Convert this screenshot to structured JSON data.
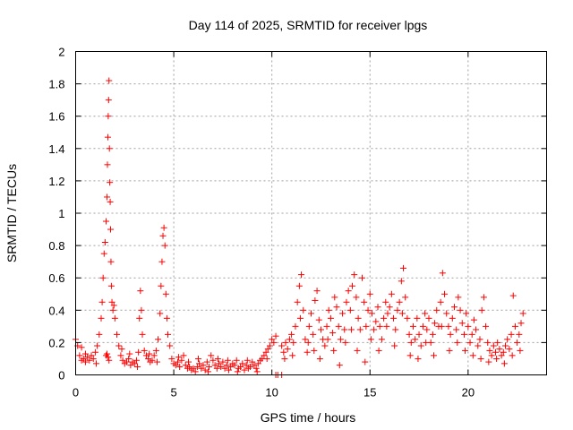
{
  "chart_data": {
    "type": "scatter",
    "title": "Day 114 of 2025, SRMTID for receiver lpgs",
    "xlabel": "GPS time / hours",
    "ylabel": "SRMTID / TECUs",
    "xlim": [
      0,
      24
    ],
    "ylim": [
      0,
      2
    ],
    "xticks": [
      0,
      5,
      10,
      15,
      20
    ],
    "yticks": [
      0,
      0.2,
      0.4,
      0.6,
      0.8,
      1,
      1.2,
      1.4,
      1.6,
      1.8,
      2
    ],
    "ytick_labels": [
      "0",
      "0.2",
      "0.4",
      "0.6",
      "0.8",
      "1",
      "1.2",
      "1.4",
      "1.6",
      "1.8",
      "2"
    ],
    "grid": true,
    "marker": "+",
    "color": "#ff0000",
    "series": [
      {
        "name": "lpgs",
        "points": [
          [
            0.0,
            0.22
          ],
          [
            0.1,
            0.18
          ],
          [
            0.2,
            0.12
          ],
          [
            0.3,
            0.09
          ],
          [
            0.4,
            0.1
          ],
          [
            0.5,
            0.08
          ],
          [
            0.6,
            0.11
          ],
          [
            0.7,
            0.09
          ],
          [
            0.8,
            0.12
          ],
          [
            0.9,
            0.1
          ],
          [
            1.0,
            0.14
          ],
          [
            1.1,
            0.18
          ],
          [
            1.2,
            0.25
          ],
          [
            1.3,
            0.35
          ],
          [
            1.35,
            0.45
          ],
          [
            1.4,
            0.6
          ],
          [
            1.45,
            0.75
          ],
          [
            1.5,
            0.82
          ],
          [
            1.55,
            0.95
          ],
          [
            1.6,
            1.1
          ],
          [
            1.62,
            1.3
          ],
          [
            1.64,
            1.47
          ],
          [
            1.66,
            1.6
          ],
          [
            1.68,
            1.7
          ],
          [
            1.7,
            1.82
          ],
          [
            1.72,
            1.4
          ],
          [
            1.74,
            1.19
          ],
          [
            1.76,
            1.07
          ],
          [
            1.78,
            0.9
          ],
          [
            1.8,
            0.7
          ],
          [
            1.82,
            0.55
          ],
          [
            1.85,
            0.45
          ],
          [
            1.9,
            0.4
          ],
          [
            1.95,
            0.43
          ],
          [
            2.0,
            0.35
          ],
          [
            1.6,
            0.13
          ],
          [
            1.7,
            0.09
          ],
          [
            1.65,
            0.11
          ],
          [
            1.55,
            0.12
          ],
          [
            2.1,
            0.25
          ],
          [
            2.2,
            0.18
          ],
          [
            2.3,
            0.12
          ],
          [
            2.4,
            0.09
          ],
          [
            2.5,
            0.07
          ],
          [
            2.6,
            0.08
          ],
          [
            2.7,
            0.1
          ],
          [
            2.8,
            0.06
          ],
          [
            2.9,
            0.08
          ],
          [
            3.0,
            0.07
          ],
          [
            3.1,
            0.09
          ],
          [
            3.2,
            0.14
          ],
          [
            3.25,
            0.35
          ],
          [
            3.3,
            0.52
          ],
          [
            3.35,
            0.4
          ],
          [
            3.4,
            0.25
          ],
          [
            3.5,
            0.15
          ],
          [
            3.6,
            0.12
          ],
          [
            3.7,
            0.1
          ],
          [
            3.8,
            0.08
          ],
          [
            3.9,
            0.09
          ],
          [
            4.0,
            0.12
          ],
          [
            4.1,
            0.15
          ],
          [
            4.2,
            0.22
          ],
          [
            4.3,
            0.38
          ],
          [
            4.35,
            0.55
          ],
          [
            4.4,
            0.7
          ],
          [
            4.45,
            0.86
          ],
          [
            4.5,
            0.91
          ],
          [
            4.55,
            0.8
          ],
          [
            4.6,
            0.5
          ],
          [
            4.65,
            0.35
          ],
          [
            4.7,
            0.25
          ],
          [
            4.8,
            0.18
          ],
          [
            4.9,
            0.1
          ],
          [
            5.0,
            0.07
          ],
          [
            5.1,
            0.06
          ],
          [
            5.2,
            0.08
          ],
          [
            5.3,
            0.05
          ],
          [
            5.4,
            0.09
          ],
          [
            5.5,
            0.12
          ],
          [
            5.6,
            0.06
          ],
          [
            5.7,
            0.04
          ],
          [
            5.8,
            0.05
          ],
          [
            5.9,
            0.03
          ],
          [
            6.0,
            0.04
          ],
          [
            6.1,
            0.02
          ],
          [
            6.2,
            0.05
          ],
          [
            6.3,
            0.07
          ],
          [
            6.4,
            0.04
          ],
          [
            6.5,
            0.06
          ],
          [
            6.6,
            0.03
          ],
          [
            6.7,
            0.08
          ],
          [
            6.8,
            0.05
          ],
          [
            6.9,
            0.12
          ],
          [
            7.0,
            0.09
          ],
          [
            7.1,
            0.06
          ],
          [
            7.2,
            0.04
          ],
          [
            7.3,
            0.07
          ],
          [
            7.4,
            0.05
          ],
          [
            7.5,
            0.08
          ],
          [
            7.6,
            0.04
          ],
          [
            7.7,
            0.06
          ],
          [
            7.8,
            0.03
          ],
          [
            7.9,
            0.05
          ],
          [
            8.0,
            0.07
          ],
          [
            8.1,
            0.06
          ],
          [
            8.2,
            0.09
          ],
          [
            8.3,
            0.04
          ],
          [
            8.4,
            0.05
          ],
          [
            8.5,
            0.07
          ],
          [
            8.6,
            0.03
          ],
          [
            8.7,
            0.06
          ],
          [
            8.8,
            0.04
          ],
          [
            8.9,
            0.05
          ],
          [
            9.0,
            0.08
          ],
          [
            9.1,
            0.06
          ],
          [
            9.2,
            0.04
          ],
          [
            9.3,
            0.07
          ],
          [
            9.4,
            0.09
          ],
          [
            9.5,
            0.1
          ],
          [
            9.6,
            0.12
          ],
          [
            9.7,
            0.14
          ],
          [
            9.8,
            0.16
          ],
          [
            9.9,
            0.18
          ],
          [
            10.0,
            0.22
          ],
          [
            10.1,
            0.2
          ],
          [
            10.2,
            0.24
          ],
          [
            10.2,
            0.0
          ],
          [
            10.3,
            0.0
          ],
          [
            10.5,
            0.0
          ],
          [
            10.5,
            0.18
          ],
          [
            10.6,
            0.14
          ],
          [
            10.7,
            0.2
          ],
          [
            10.8,
            0.16
          ],
          [
            10.9,
            0.22
          ],
          [
            11.0,
            0.25
          ],
          [
            11.1,
            0.2
          ],
          [
            11.2,
            0.3
          ],
          [
            11.3,
            0.45
          ],
          [
            11.4,
            0.55
          ],
          [
            11.5,
            0.62
          ],
          [
            11.6,
            0.4
          ],
          [
            11.7,
            0.22
          ],
          [
            11.8,
            0.14
          ],
          [
            11.9,
            0.3
          ],
          [
            12.0,
            0.38
          ],
          [
            12.1,
            0.25
          ],
          [
            12.2,
            0.46
          ],
          [
            12.3,
            0.52
          ],
          [
            12.4,
            0.34
          ],
          [
            12.5,
            0.28
          ],
          [
            12.6,
            0.22
          ],
          [
            12.7,
            0.18
          ],
          [
            12.8,
            0.3
          ],
          [
            12.9,
            0.4
          ],
          [
            13.0,
            0.35
          ],
          [
            13.1,
            0.26
          ],
          [
            13.2,
            0.48
          ],
          [
            13.3,
            0.42
          ],
          [
            13.4,
            0.3
          ],
          [
            13.5,
            0.22
          ],
          [
            13.6,
            0.38
          ],
          [
            13.7,
            0.28
          ],
          [
            13.8,
            0.45
          ],
          [
            13.9,
            0.52
          ],
          [
            14.0,
            0.4
          ],
          [
            14.1,
            0.55
          ],
          [
            14.2,
            0.62
          ],
          [
            14.3,
            0.48
          ],
          [
            14.4,
            0.35
          ],
          [
            14.5,
            0.28
          ],
          [
            14.6,
            0.6
          ],
          [
            14.7,
            0.45
          ],
          [
            14.8,
            0.3
          ],
          [
            14.9,
            0.4
          ],
          [
            15.0,
            0.5
          ],
          [
            15.1,
            0.38
          ],
          [
            15.2,
            0.28
          ],
          [
            15.3,
            0.33
          ],
          [
            15.4,
            0.42
          ],
          [
            15.5,
            0.3
          ],
          [
            15.6,
            0.22
          ],
          [
            15.7,
            0.35
          ],
          [
            15.8,
            0.45
          ],
          [
            15.9,
            0.38
          ],
          [
            16.0,
            0.42
          ],
          [
            16.1,
            0.5
          ],
          [
            16.2,
            0.35
          ],
          [
            16.3,
            0.28
          ],
          [
            16.4,
            0.4
          ],
          [
            16.5,
            0.45
          ],
          [
            16.6,
            0.58
          ],
          [
            16.7,
            0.66
          ],
          [
            16.8,
            0.48
          ],
          [
            16.9,
            0.35
          ],
          [
            17.0,
            0.25
          ],
          [
            17.1,
            0.2
          ],
          [
            17.2,
            0.3
          ],
          [
            17.3,
            0.22
          ],
          [
            17.4,
            0.35
          ],
          [
            17.5,
            0.25
          ],
          [
            17.6,
            0.18
          ],
          [
            17.7,
            0.3
          ],
          [
            17.8,
            0.38
          ],
          [
            17.9,
            0.28
          ],
          [
            18.0,
            0.35
          ],
          [
            18.1,
            0.2
          ],
          [
            18.2,
            0.25
          ],
          [
            18.3,
            0.32
          ],
          [
            18.4,
            0.4
          ],
          [
            18.5,
            0.3
          ],
          [
            18.6,
            0.45
          ],
          [
            18.7,
            0.63
          ],
          [
            18.8,
            0.5
          ],
          [
            18.9,
            0.38
          ],
          [
            19.0,
            0.3
          ],
          [
            19.1,
            0.25
          ],
          [
            19.2,
            0.35
          ],
          [
            19.3,
            0.42
          ],
          [
            19.4,
            0.28
          ],
          [
            19.5,
            0.48
          ],
          [
            19.6,
            0.4
          ],
          [
            19.7,
            0.32
          ],
          [
            19.8,
            0.25
          ],
          [
            19.9,
            0.38
          ],
          [
            20.0,
            0.3
          ],
          [
            20.1,
            0.2
          ],
          [
            20.2,
            0.25
          ],
          [
            20.3,
            0.34
          ],
          [
            20.4,
            0.28
          ],
          [
            20.5,
            0.18
          ],
          [
            20.6,
            0.22
          ],
          [
            20.7,
            0.4
          ],
          [
            20.8,
            0.48
          ],
          [
            20.9,
            0.3
          ],
          [
            21.0,
            0.2
          ],
          [
            21.1,
            0.15
          ],
          [
            21.2,
            0.12
          ],
          [
            21.3,
            0.18
          ],
          [
            21.4,
            0.14
          ],
          [
            21.5,
            0.2
          ],
          [
            21.6,
            0.16
          ],
          [
            21.7,
            0.12
          ],
          [
            21.8,
            0.14
          ],
          [
            21.9,
            0.18
          ],
          [
            22.0,
            0.22
          ],
          [
            22.1,
            0.16
          ],
          [
            22.2,
            0.25
          ],
          [
            22.3,
            0.49
          ],
          [
            22.4,
            0.3
          ],
          [
            22.5,
            0.2
          ],
          [
            22.6,
            0.25
          ],
          [
            22.7,
            0.32
          ],
          [
            22.8,
            0.38
          ],
          [
            0.3,
            0.17
          ],
          [
            0.5,
            0.13
          ],
          [
            1.05,
            0.07
          ],
          [
            2.35,
            0.16
          ],
          [
            2.75,
            0.13
          ],
          [
            3.15,
            0.05
          ],
          [
            3.75,
            0.13
          ],
          [
            4.15,
            0.08
          ],
          [
            5.25,
            0.11
          ],
          [
            5.75,
            0.08
          ],
          [
            6.25,
            0.1
          ],
          [
            6.75,
            0.02
          ],
          [
            7.25,
            0.1
          ],
          [
            7.75,
            0.09
          ],
          [
            8.25,
            0.02
          ],
          [
            8.75,
            0.09
          ],
          [
            9.25,
            0.02
          ],
          [
            9.75,
            0.1
          ],
          [
            10.65,
            0.1
          ],
          [
            11.05,
            0.12
          ],
          [
            11.45,
            0.35
          ],
          [
            11.85,
            0.2
          ],
          [
            12.15,
            0.15
          ],
          [
            12.45,
            0.1
          ],
          [
            12.85,
            0.22
          ],
          [
            13.15,
            0.15
          ],
          [
            13.45,
            0.06
          ],
          [
            13.75,
            0.2
          ],
          [
            14.05,
            0.28
          ],
          [
            14.35,
            0.15
          ],
          [
            14.75,
            0.08
          ],
          [
            15.05,
            0.22
          ],
          [
            15.45,
            0.15
          ],
          [
            15.85,
            0.3
          ],
          [
            16.25,
            0.18
          ],
          [
            16.65,
            0.38
          ],
          [
            17.05,
            0.12
          ],
          [
            17.45,
            0.1
          ],
          [
            17.85,
            0.2
          ],
          [
            18.25,
            0.12
          ],
          [
            18.65,
            0.3
          ],
          [
            19.05,
            0.15
          ],
          [
            19.45,
            0.2
          ],
          [
            19.85,
            0.15
          ],
          [
            20.25,
            0.12
          ],
          [
            20.65,
            0.1
          ],
          [
            21.05,
            0.08
          ],
          [
            21.45,
            0.1
          ],
          [
            21.85,
            0.07
          ],
          [
            22.25,
            0.12
          ],
          [
            22.65,
            0.15
          ]
        ]
      }
    ]
  }
}
